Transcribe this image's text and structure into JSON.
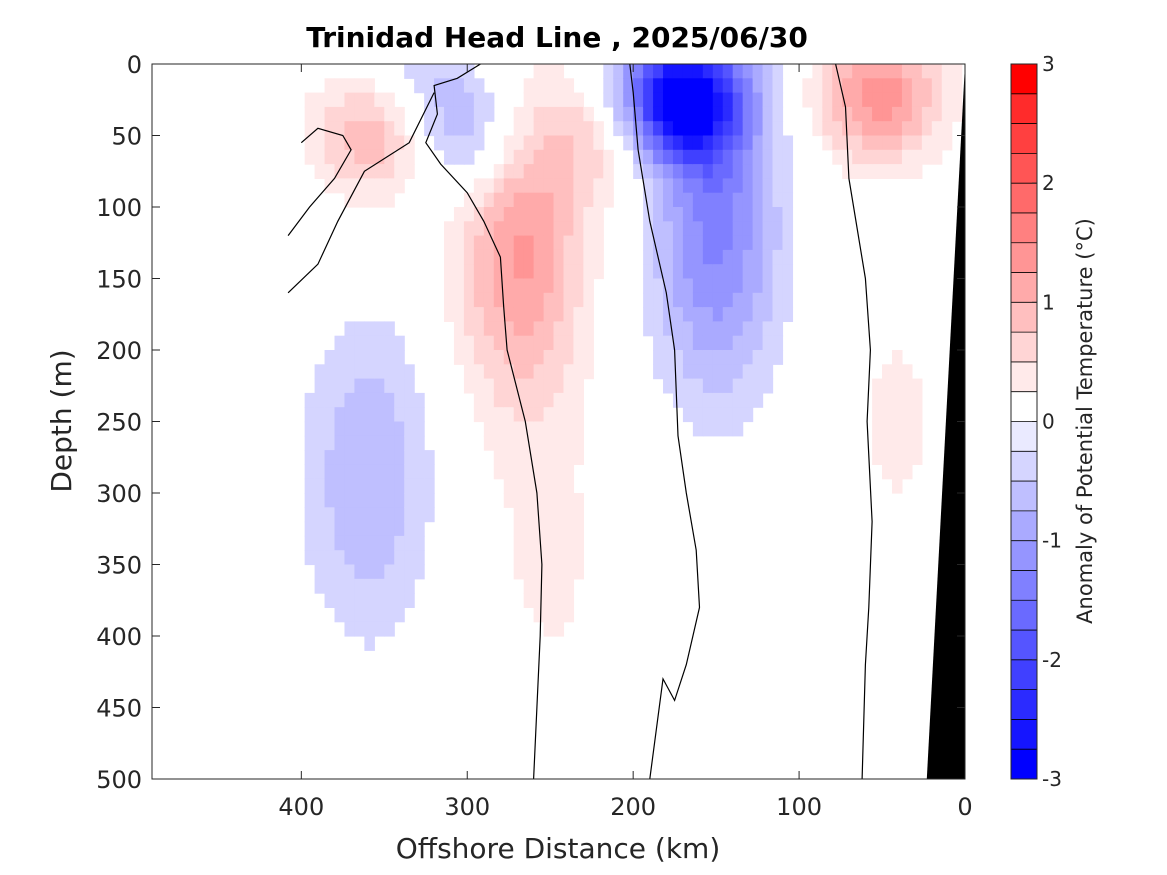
{
  "chart_data": {
    "type": "heatmap",
    "title": "Trinidad Head Line , 2025/06/30",
    "xlabel": "Offshore Distance (km)",
    "ylabel": "Depth (m)",
    "x_reversed": true,
    "y_reversed": true,
    "xlim": [
      490,
      0
    ],
    "ylim": [
      0,
      500
    ],
    "xticks": [
      400,
      300,
      200,
      100,
      0
    ],
    "xtick_labels": [
      "400",
      "300",
      "200",
      "100",
      "0"
    ],
    "yticks": [
      0,
      50,
      100,
      150,
      200,
      250,
      300,
      350,
      400,
      450,
      500
    ],
    "ytick_labels": [
      "0",
      "50",
      "100",
      "150",
      "200",
      "250",
      "300",
      "350",
      "400",
      "450",
      "500"
    ],
    "colorbar": {
      "label": "Anomaly of Potential Temperature (°C)",
      "range": [
        -3,
        3
      ],
      "ticks": [
        3,
        2,
        1,
        0,
        -1,
        -2,
        -3
      ],
      "tick_labels": [
        "3",
        "2",
        "1",
        "0",
        "-1",
        "-2",
        "-3"
      ],
      "levels": 24,
      "colors": [
        "#0000ff",
        "#1515ff",
        "#2b2bff",
        "#4040ff",
        "#5555ff",
        "#6a6aff",
        "#8080ff",
        "#9595ff",
        "#aaaaff",
        "#bfbfff",
        "#d5d5ff",
        "#eaeaff",
        "#ffffff",
        "#ffeaea",
        "#ffd5d5",
        "#ffbfbf",
        "#ffaaaa",
        "#ff9595",
        "#ff8080",
        "#ff6a6a",
        "#ff5555",
        "#ff4040",
        "#ff2b2b",
        "#ff0000"
      ]
    },
    "grid": false,
    "data_extent_km": [
      0,
      410
    ],
    "features": [
      {
        "kind": "cold",
        "center_km": 172,
        "center_depth_m": 25,
        "peak_anomaly": -3.0
      },
      {
        "kind": "cold",
        "center_km": 150,
        "center_depth_m": 120,
        "peak_anomaly": -1.3
      },
      {
        "kind": "cold",
        "center_km": 360,
        "center_depth_m": 290,
        "peak_anomaly": -0.75
      },
      {
        "kind": "cold",
        "center_km": 300,
        "center_depth_m": 50,
        "peak_anomaly": -0.9
      },
      {
        "kind": "cold",
        "center_km": 330,
        "center_depth_m": 10,
        "peak_anomaly": -0.5
      },
      {
        "kind": "warm",
        "center_km": 268,
        "center_depth_m": 130,
        "peak_anomaly": 1.3
      },
      {
        "kind": "warm",
        "center_km": 355,
        "center_depth_m": 48,
        "peak_anomaly": 1.1
      },
      {
        "kind": "warm",
        "center_km": 215,
        "center_depth_m": 50,
        "peak_anomaly": 0.7
      },
      {
        "kind": "warm",
        "center_km": 52,
        "center_depth_m": 22,
        "peak_anomaly": 1.4
      },
      {
        "kind": "warm",
        "center_km": 40,
        "center_depth_m": 250,
        "peak_anomaly": 0.3
      },
      {
        "kind": "warm",
        "center_km": 250,
        "center_depth_m": 350,
        "peak_anomaly": 0.3
      }
    ],
    "bathymetry": {
      "color": "#000000",
      "polygon": [
        [
          0,
          0
        ],
        [
          0,
          500
        ],
        [
          23,
          500
        ]
      ]
    },
    "zero_contours": [
      [
        [
          292,
          0
        ],
        [
          306,
          10
        ],
        [
          320,
          15
        ],
        [
          318,
          35
        ],
        [
          325,
          55
        ],
        [
          316,
          70
        ],
        [
          300,
          90
        ],
        [
          290,
          110
        ],
        [
          280,
          135
        ],
        [
          278,
          170
        ],
        [
          276,
          200
        ],
        [
          265,
          250
        ],
        [
          258,
          300
        ],
        [
          255,
          350
        ],
        [
          256,
          400
        ],
        [
          258,
          450
        ],
        [
          260,
          500
        ]
      ],
      [
        [
          202,
          0
        ],
        [
          200,
          20
        ],
        [
          197,
          60
        ],
        [
          190,
          110
        ],
        [
          180,
          160
        ],
        [
          175,
          200
        ],
        [
          173,
          260
        ],
        [
          168,
          300
        ],
        [
          162,
          340
        ],
        [
          160,
          380
        ],
        [
          168,
          420
        ],
        [
          175,
          445
        ],
        [
          182,
          430
        ],
        [
          190,
          500
        ]
      ],
      [
        [
          78,
          0
        ],
        [
          72,
          30
        ],
        [
          70,
          80
        ],
        [
          60,
          150
        ],
        [
          57,
          200
        ],
        [
          59,
          250
        ],
        [
          56,
          320
        ],
        [
          58,
          380
        ],
        [
          60,
          420
        ],
        [
          62,
          500
        ]
      ],
      [
        [
          408,
          120
        ],
        [
          395,
          100
        ],
        [
          380,
          80
        ],
        [
          370,
          60
        ],
        [
          375,
          50
        ],
        [
          390,
          45
        ],
        [
          400,
          55
        ]
      ],
      [
        [
          408,
          160
        ],
        [
          390,
          140
        ],
        [
          378,
          110
        ],
        [
          362,
          75
        ],
        [
          335,
          55
        ],
        [
          320,
          20
        ]
      ]
    ]
  }
}
